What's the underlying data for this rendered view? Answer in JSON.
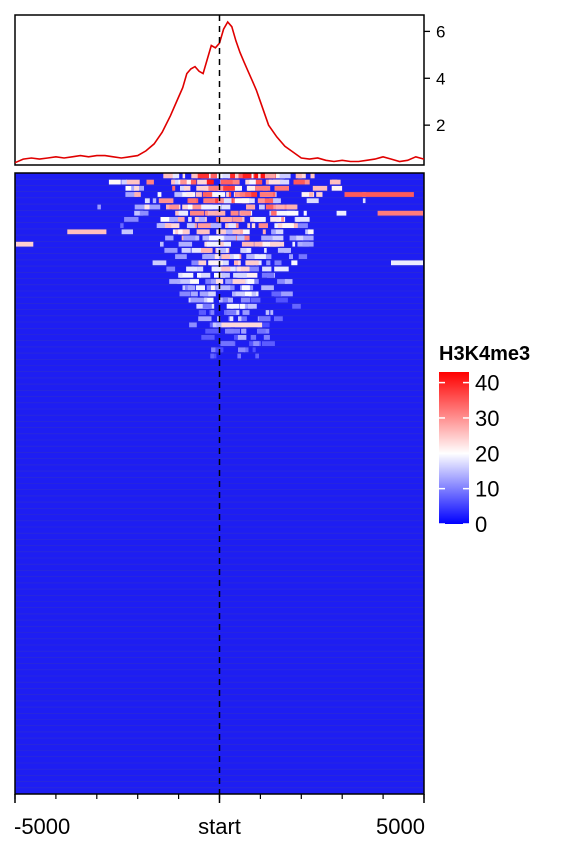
{
  "chart_data": [
    {
      "type": "line",
      "panel": "profile",
      "title": "",
      "xlabel": "",
      "ylabel": "",
      "xlim": [
        -5000,
        5000
      ],
      "ylim": [
        0.3,
        6.7
      ],
      "yticks": [
        2,
        4,
        6
      ],
      "y_axis_side": "right",
      "series": [
        {
          "color": "#e00000",
          "x": [
            -5000,
            -4800,
            -4600,
            -4400,
            -4200,
            -4000,
            -3800,
            -3600,
            -3400,
            -3200,
            -3000,
            -2800,
            -2600,
            -2400,
            -2200,
            -2000,
            -1800,
            -1600,
            -1400,
            -1200,
            -1000,
            -900,
            -800,
            -700,
            -600,
            -500,
            -400,
            -300,
            -200,
            -100,
            0,
            100,
            200,
            300,
            400,
            500,
            600,
            700,
            800,
            900,
            1000,
            1200,
            1400,
            1600,
            1800,
            2000,
            2200,
            2400,
            2600,
            2800,
            3000,
            3200,
            3400,
            3600,
            3800,
            4000,
            4200,
            4400,
            4600,
            4800,
            5000
          ],
          "y": [
            0.4,
            0.55,
            0.6,
            0.55,
            0.6,
            0.65,
            0.6,
            0.65,
            0.7,
            0.65,
            0.7,
            0.7,
            0.65,
            0.6,
            0.65,
            0.7,
            0.9,
            1.2,
            1.7,
            2.4,
            3.2,
            3.6,
            4.2,
            4.4,
            4.5,
            4.3,
            4.2,
            4.8,
            5.4,
            5.3,
            5.5,
            6.1,
            6.4,
            6.2,
            5.6,
            5.1,
            4.7,
            4.3,
            3.9,
            3.5,
            3.0,
            2.0,
            1.5,
            1.1,
            0.85,
            0.6,
            0.55,
            0.6,
            0.5,
            0.45,
            0.5,
            0.45,
            0.45,
            0.5,
            0.55,
            0.65,
            0.55,
            0.45,
            0.5,
            0.65,
            0.55
          ]
        }
      ],
      "vline_x": 0,
      "vline_style": "dashed",
      "grid": false
    },
    {
      "type": "heatmap",
      "panel": "heatmap",
      "title": "",
      "xlabel": "",
      "ylabel": "",
      "xlim": [
        -5000,
        5000
      ],
      "xticks": [
        {
          "value": -5000,
          "label": "-5000"
        },
        {
          "value": 0,
          "label": "start"
        },
        {
          "value": 5000,
          "label": "5000"
        }
      ],
      "minor_tick_step": 1000,
      "rows": 100,
      "signal_rows_fraction": 0.3,
      "vline_x": 0,
      "vline_style": "dashed",
      "grid": false,
      "legend": {
        "title": "H3K4me3",
        "placement": "right",
        "range": [
          0,
          43
        ],
        "ticks": [
          0,
          10,
          20,
          30,
          40
        ],
        "colors": [
          "#0000ff",
          "#ffffff",
          "#ff0000"
        ],
        "mid_value": 20
      }
    }
  ]
}
